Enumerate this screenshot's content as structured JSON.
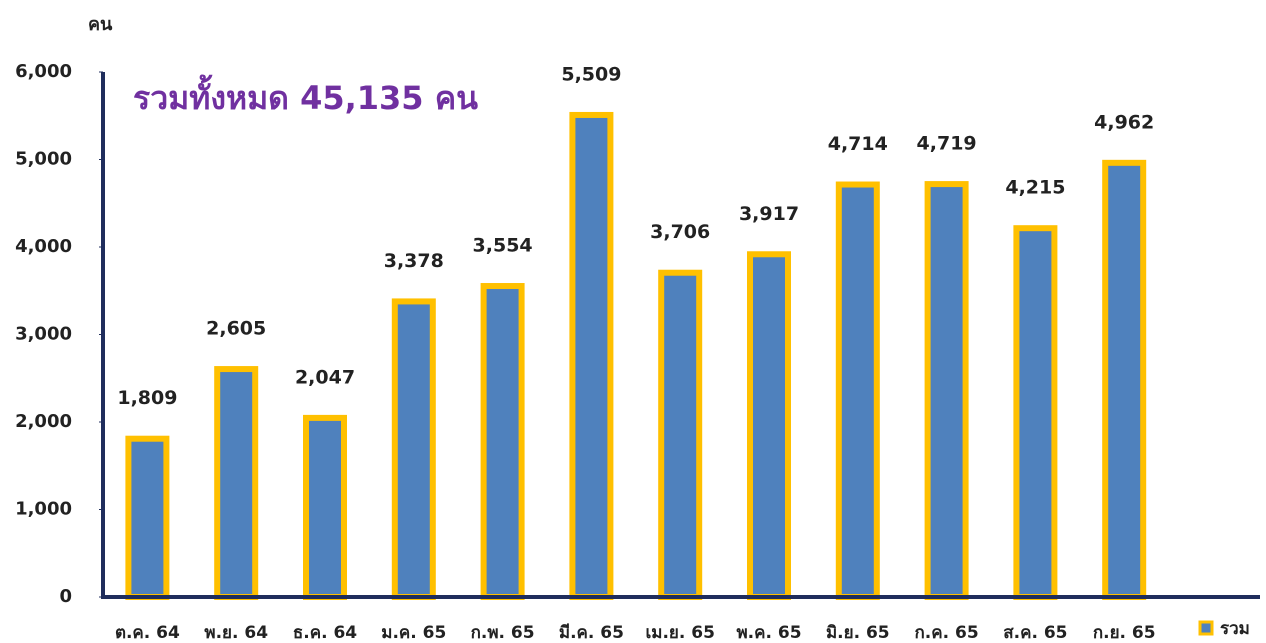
{
  "chart_data": {
    "type": "bar",
    "title": "รวมทั้งหมด 45,135 คน",
    "y_label": "คน",
    "categories": [
      "ต.ค. 64",
      "พ.ย. 64",
      "ธ.ค. 64",
      "ม.ค. 65",
      "ก.พ. 65",
      "มี.ค. 65",
      "เม.ย. 65",
      "พ.ค. 65",
      "มิ.ย. 65",
      "ก.ค. 65",
      "ส.ค. 65",
      "ก.ย. 65"
    ],
    "series": [
      {
        "name": "รวม",
        "color": "#4F81BD",
        "border_color": "#FFC000",
        "values": [
          1809,
          2605,
          2047,
          3378,
          3554,
          5509,
          3706,
          3917,
          4714,
          4719,
          4215,
          4962
        ],
        "value_labels": [
          "1,809",
          "2,605",
          "2,047",
          "3,378",
          "3,554",
          "5,509",
          "3,706",
          "3,917",
          "4,714",
          "4,719",
          "4,215",
          "4,962"
        ]
      }
    ],
    "ylim": [
      0,
      6000
    ],
    "yticks": [
      0,
      {
        "value": 1000,
        "label": "1,000"
      },
      {
        "value": 2000,
        "label": "2,000"
      },
      {
        "value": 3000,
        "label": "3,000"
      },
      {
        "value": 4000,
        "label": "4,000"
      },
      {
        "value": 5000,
        "label": "5,000"
      },
      {
        "value": 6000,
        "label": "6,000"
      }
    ],
    "legend": "bottom-right"
  }
}
